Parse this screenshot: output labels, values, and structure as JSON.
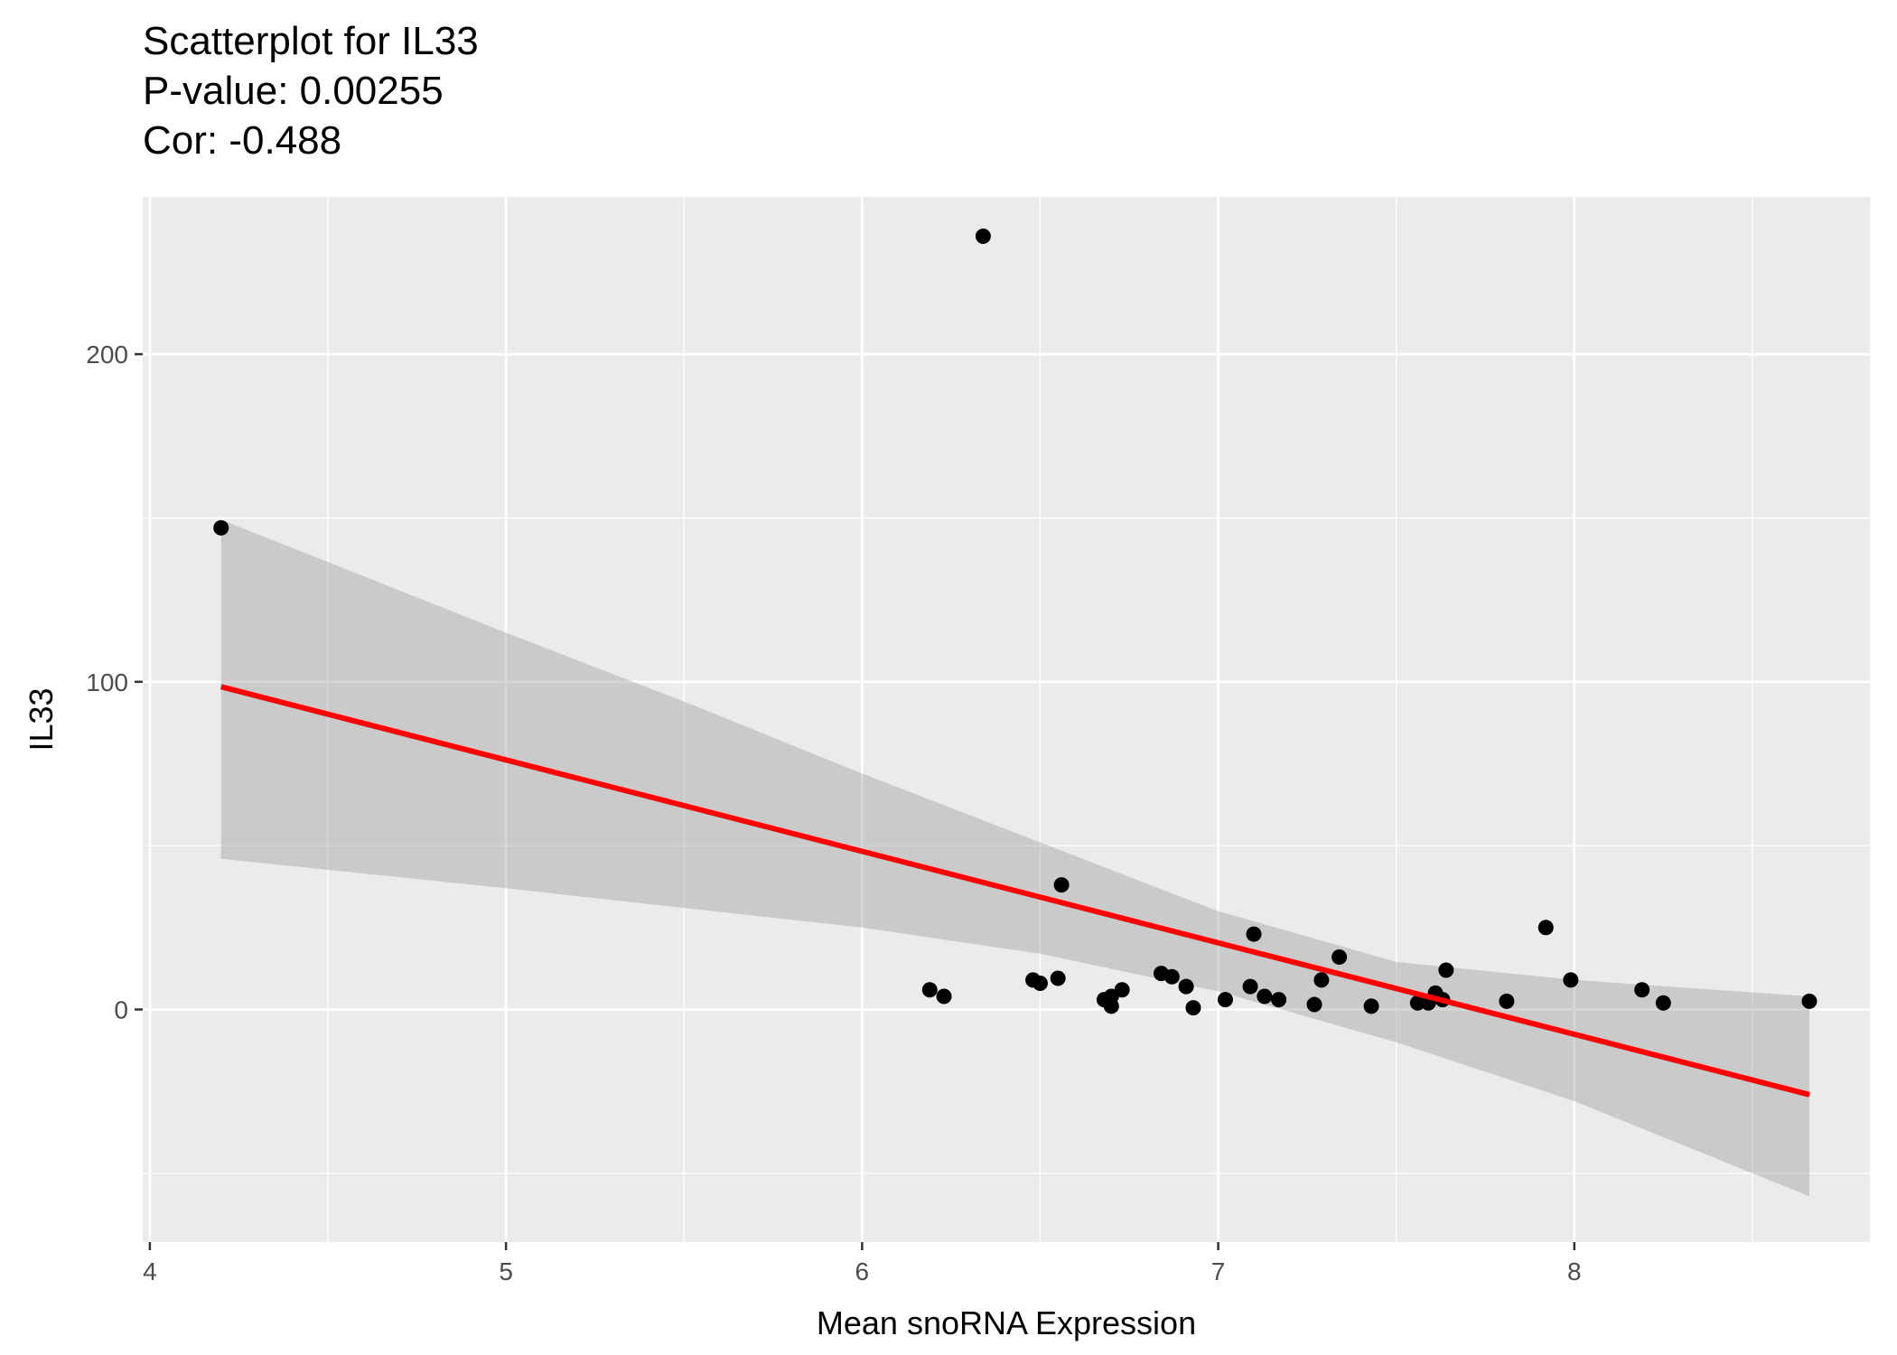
{
  "chart_data": {
    "type": "scatter",
    "title": "Scatterplot for IL33",
    "subtitle_lines": [
      "P-value: 0.00255",
      "Cor: -0.488"
    ],
    "xlabel": "Mean snoRNA Expression",
    "ylabel": "IL33",
    "xlim": [
      3.98,
      8.83
    ],
    "ylim": [
      -71,
      248
    ],
    "x_ticks": [
      4,
      5,
      6,
      7,
      8
    ],
    "y_ticks": [
      0,
      100,
      200
    ],
    "grid": true,
    "points": [
      {
        "x": 4.2,
        "y": 147
      },
      {
        "x": 6.34,
        "y": 236
      },
      {
        "x": 6.19,
        "y": 6
      },
      {
        "x": 6.23,
        "y": 4
      },
      {
        "x": 6.48,
        "y": 9
      },
      {
        "x": 6.5,
        "y": 8
      },
      {
        "x": 6.55,
        "y": 9.5
      },
      {
        "x": 6.56,
        "y": 38
      },
      {
        "x": 6.68,
        "y": 3
      },
      {
        "x": 6.7,
        "y": 1
      },
      {
        "x": 6.7,
        "y": 4
      },
      {
        "x": 6.73,
        "y": 6
      },
      {
        "x": 6.84,
        "y": 11
      },
      {
        "x": 6.87,
        "y": 10
      },
      {
        "x": 6.91,
        "y": 7
      },
      {
        "x": 6.93,
        "y": 0.5
      },
      {
        "x": 7.02,
        "y": 3
      },
      {
        "x": 7.09,
        "y": 7
      },
      {
        "x": 7.1,
        "y": 23
      },
      {
        "x": 7.13,
        "y": 4
      },
      {
        "x": 7.17,
        "y": 3
      },
      {
        "x": 7.27,
        "y": 1.5
      },
      {
        "x": 7.29,
        "y": 9
      },
      {
        "x": 7.34,
        "y": 16
      },
      {
        "x": 7.43,
        "y": 1
      },
      {
        "x": 7.56,
        "y": 2
      },
      {
        "x": 7.59,
        "y": 2
      },
      {
        "x": 7.61,
        "y": 5
      },
      {
        "x": 7.63,
        "y": 3
      },
      {
        "x": 7.64,
        "y": 12
      },
      {
        "x": 7.81,
        "y": 2.5
      },
      {
        "x": 7.92,
        "y": 25
      },
      {
        "x": 7.99,
        "y": 9
      },
      {
        "x": 8.19,
        "y": 6
      },
      {
        "x": 8.25,
        "y": 2
      },
      {
        "x": 8.66,
        "y": 2.5
      }
    ],
    "fit_line": {
      "x": [
        4.2,
        8.66
      ],
      "y": [
        98.5,
        -26
      ],
      "color": "#ff0000"
    },
    "confidence_band": {
      "x": [
        4.2,
        5,
        5.5,
        6,
        6.5,
        7,
        7.5,
        8,
        8.66
      ],
      "upper": [
        149.5,
        115,
        94,
        72,
        51,
        30,
        14.5,
        9,
        4
      ],
      "lower": [
        46,
        37,
        31,
        25,
        17,
        5.5,
        -10,
        -28,
        -57
      ],
      "color": "#cccccc"
    },
    "colors": {
      "panel": "#ebebeb",
      "grid": "#ffffff",
      "point": "#000000",
      "line": "#ff0000",
      "band": "#999999"
    }
  }
}
